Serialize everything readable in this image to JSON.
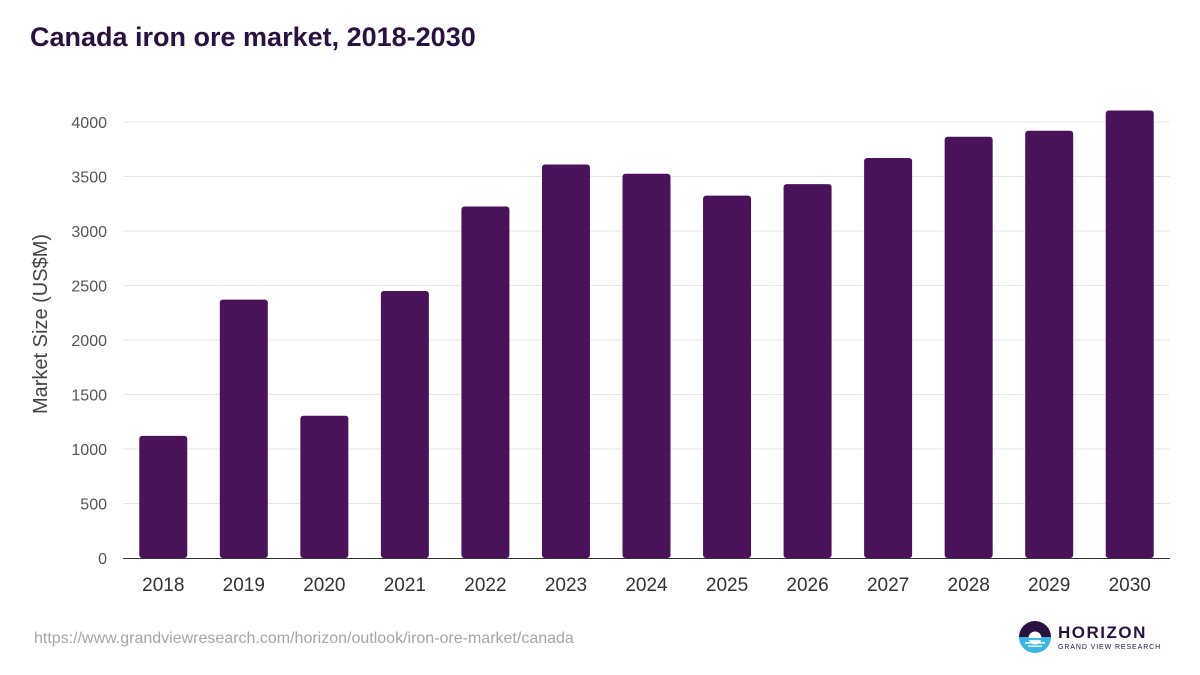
{
  "page": {
    "title": "Canada iron ore market, 2018-2030",
    "source_url": "https://www.grandviewresearch.com/horizon/outlook/iron-ore-market/canada"
  },
  "logo": {
    "name": "HORIZON",
    "subtitle": "GRAND VIEW RESEARCH"
  },
  "colors": {
    "bar": "#4a1259",
    "title": "#2a1240",
    "grid": "#e6e6e6",
    "logo_accent": "#3cb4e6"
  },
  "chart_data": {
    "type": "bar",
    "title": "Canada iron ore market, 2018-2030",
    "xlabel": "",
    "ylabel": "Market Size (US$M)",
    "categories": [
      "2018",
      "2019",
      "2020",
      "2021",
      "2022",
      "2023",
      "2024",
      "2025",
      "2026",
      "2027",
      "2028",
      "2029",
      "2030"
    ],
    "values": [
      1120,
      2370,
      1305,
      2450,
      3225,
      3610,
      3525,
      3325,
      3430,
      3670,
      3865,
      3920,
      4105
    ],
    "ylim": [
      0,
      4000
    ],
    "yticks": [
      "0",
      "500",
      "1000",
      "1500",
      "2000",
      "2500",
      "3000",
      "3500",
      "4000"
    ],
    "grid": true,
    "legend": "none"
  }
}
